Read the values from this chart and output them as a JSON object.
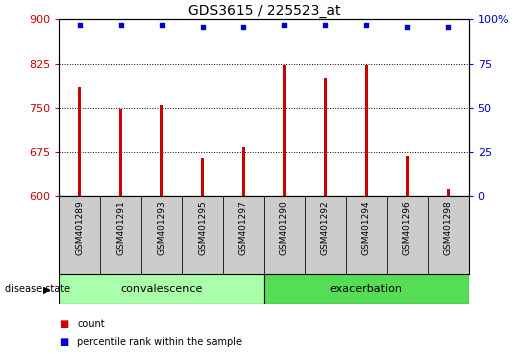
{
  "title": "GDS3615 / 225523_at",
  "samples": [
    "GSM401289",
    "GSM401291",
    "GSM401293",
    "GSM401295",
    "GSM401297",
    "GSM401290",
    "GSM401292",
    "GSM401294",
    "GSM401296",
    "GSM401298"
  ],
  "counts": [
    785,
    748,
    755,
    665,
    683,
    822,
    800,
    822,
    669,
    613
  ],
  "percentiles": [
    97,
    97,
    97,
    96,
    96,
    97,
    97,
    97,
    96,
    96
  ],
  "ylim": [
    600,
    900
  ],
  "yticks": [
    600,
    675,
    750,
    825,
    900
  ],
  "ytick_labels_right": [
    0,
    25,
    50,
    75,
    100
  ],
  "bar_color": "#cc0000",
  "dot_color": "#0000cc",
  "background_color": "#ffffff",
  "convalescence_color": "#aaffaa",
  "exacerbation_color": "#55dd55",
  "sample_bg_color": "#cccccc",
  "n_convalescence": 5,
  "n_exacerbation": 5,
  "group_labels": [
    "convalescence",
    "exacerbation"
  ],
  "legend_count_label": "count",
  "legend_pct_label": "percentile rank within the sample",
  "disease_state_label": "disease state"
}
